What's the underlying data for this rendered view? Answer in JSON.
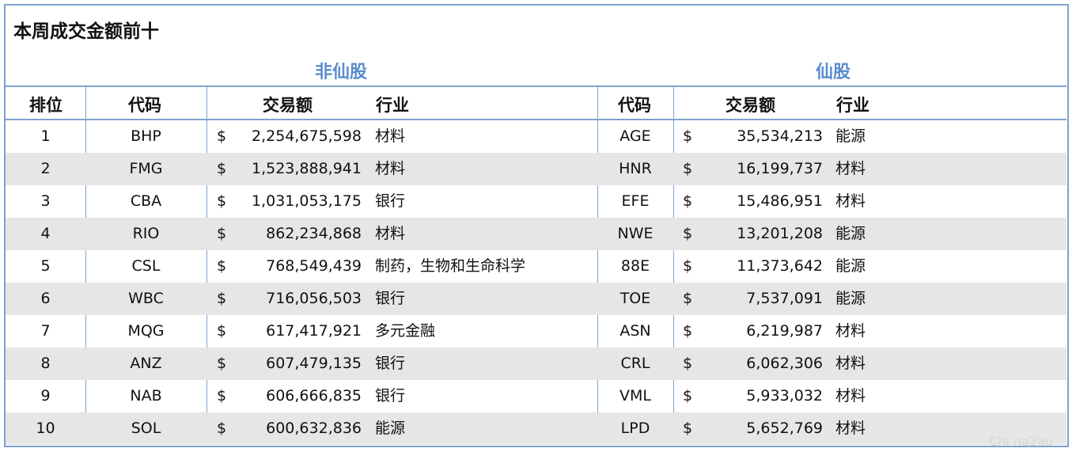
{
  "title": "本周成交金额前十",
  "groups": {
    "non_xian": "非仙股",
    "xian": "仙股"
  },
  "headers": {
    "rank": "排位",
    "code": "代码",
    "amount": "交易额",
    "industry": "行业",
    "code2": "代码",
    "amount2": "交易额",
    "industry2": "行业"
  },
  "currency": "$",
  "rows": [
    {
      "rank": "1",
      "code": "BHP",
      "amount": "2,254,675,598",
      "industry": "材料",
      "code2": "AGE",
      "amount2": "35,534,213",
      "industry2": "能源"
    },
    {
      "rank": "2",
      "code": "FMG",
      "amount": "1,523,888,941",
      "industry": "材料",
      "code2": "HNR",
      "amount2": "16,199,737",
      "industry2": "材料"
    },
    {
      "rank": "3",
      "code": "CBA",
      "amount": "1,031,053,175",
      "industry": "银行",
      "code2": "EFE",
      "amount2": "15,486,951",
      "industry2": "材料"
    },
    {
      "rank": "4",
      "code": "RIO",
      "amount": "862,234,868",
      "industry": "材料",
      "code2": "NWE",
      "amount2": "13,201,208",
      "industry2": "能源"
    },
    {
      "rank": "5",
      "code": "CSL",
      "amount": "768,549,439",
      "industry": "制药，生物和生命科学",
      "code2": "88E",
      "amount2": "11,373,642",
      "industry2": "能源"
    },
    {
      "rank": "6",
      "code": "WBC",
      "amount": "716,056,503",
      "industry": "银行",
      "code2": "TOE",
      "amount2": "7,537,091",
      "industry2": "能源"
    },
    {
      "rank": "7",
      "code": "MQG",
      "amount": "617,417,921",
      "industry": "多元金融",
      "code2": "ASN",
      "amount2": "6,219,987",
      "industry2": "材料"
    },
    {
      "rank": "8",
      "code": "ANZ",
      "amount": "607,479,135",
      "industry": "银行",
      "code2": "CRL",
      "amount2": "6,062,306",
      "industry2": "材料"
    },
    {
      "rank": "9",
      "code": "NAB",
      "amount": "606,666,835",
      "industry": "银行",
      "code2": "VML",
      "amount2": "5,933,032",
      "industry2": "材料"
    },
    {
      "rank": "10",
      "code": "SOL",
      "amount": "600,632,836",
      "industry": "能源",
      "code2": "LPD",
      "amount2": "5,652,769",
      "industry2": "材料"
    }
  ],
  "watermark": "Chi na2au"
}
